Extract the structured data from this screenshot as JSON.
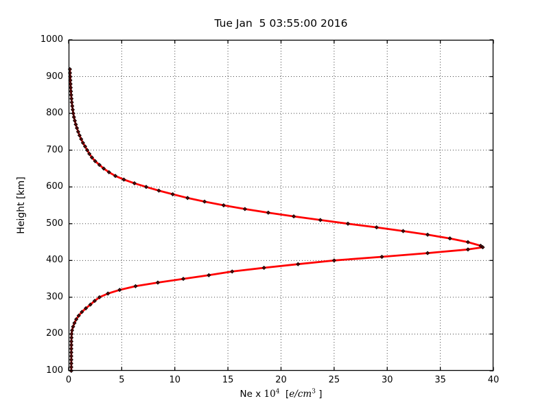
{
  "figure": {
    "background": "#ffffff"
  },
  "chart_data": {
    "type": "line",
    "title": "Tue Jan  5 03:55:00 2016",
    "ylabel": "Height [km]",
    "xlabel_parts": {
      "p1": "Ne x ",
      "num": "10",
      "sup1": "4",
      "p2": "  [",
      "italic": "e/cm",
      "sup2": "3",
      "p3": " ]"
    },
    "xlim": [
      0,
      40
    ],
    "ylim": [
      100,
      1000
    ],
    "x_ticks": [
      0,
      5,
      10,
      15,
      20,
      25,
      30,
      35,
      40
    ],
    "y_ticks": [
      100,
      200,
      300,
      400,
      500,
      600,
      700,
      800,
      900,
      1000
    ],
    "grid": "dotted-both-axes",
    "legend": "none",
    "line_color": "#ff0000",
    "marker": "diamond",
    "marker_color": "#5c0000",
    "series": [
      {
        "name": "electron-density-profile",
        "points_format": [
          "height_km",
          "ne_x10^4_e_per_cm3"
        ],
        "points": [
          [
            100,
            0.25
          ],
          [
            110,
            0.25
          ],
          [
            120,
            0.25
          ],
          [
            130,
            0.25
          ],
          [
            140,
            0.25
          ],
          [
            150,
            0.25
          ],
          [
            160,
            0.25
          ],
          [
            170,
            0.26
          ],
          [
            180,
            0.26
          ],
          [
            190,
            0.27
          ],
          [
            200,
            0.28
          ],
          [
            210,
            0.32
          ],
          [
            220,
            0.42
          ],
          [
            230,
            0.55
          ],
          [
            240,
            0.72
          ],
          [
            250,
            0.95
          ],
          [
            260,
            1.25
          ],
          [
            270,
            1.62
          ],
          [
            280,
            2.05
          ],
          [
            290,
            2.45
          ],
          [
            300,
            2.9
          ],
          [
            310,
            3.7
          ],
          [
            320,
            4.8
          ],
          [
            330,
            6.3
          ],
          [
            340,
            8.4
          ],
          [
            350,
            10.8
          ],
          [
            360,
            13.2
          ],
          [
            370,
            15.4
          ],
          [
            380,
            18.4
          ],
          [
            390,
            21.6
          ],
          [
            400,
            25.0
          ],
          [
            410,
            29.5
          ],
          [
            420,
            33.8
          ],
          [
            430,
            37.6
          ],
          [
            436,
            39.0
          ],
          [
            440,
            38.8
          ],
          [
            450,
            37.6
          ],
          [
            460,
            35.9
          ],
          [
            470,
            33.8
          ],
          [
            480,
            31.5
          ],
          [
            490,
            29.0
          ],
          [
            500,
            26.3
          ],
          [
            510,
            23.7
          ],
          [
            520,
            21.2
          ],
          [
            530,
            18.8
          ],
          [
            540,
            16.6
          ],
          [
            550,
            14.6
          ],
          [
            560,
            12.8
          ],
          [
            570,
            11.2
          ],
          [
            580,
            9.8
          ],
          [
            590,
            8.5
          ],
          [
            600,
            7.3
          ],
          [
            610,
            6.2
          ],
          [
            620,
            5.2
          ],
          [
            630,
            4.4
          ],
          [
            640,
            3.8
          ],
          [
            650,
            3.3
          ],
          [
            660,
            2.9
          ],
          [
            670,
            2.5
          ],
          [
            680,
            2.2
          ],
          [
            690,
            1.95
          ],
          [
            700,
            1.75
          ],
          [
            710,
            1.55
          ],
          [
            720,
            1.35
          ],
          [
            730,
            1.18
          ],
          [
            740,
            1.03
          ],
          [
            750,
            0.9
          ],
          [
            760,
            0.78
          ],
          [
            770,
            0.67
          ],
          [
            780,
            0.58
          ],
          [
            790,
            0.5
          ],
          [
            800,
            0.44
          ],
          [
            810,
            0.39
          ],
          [
            820,
            0.34
          ],
          [
            830,
            0.3
          ],
          [
            840,
            0.27
          ],
          [
            850,
            0.24
          ],
          [
            860,
            0.22
          ],
          [
            870,
            0.2
          ],
          [
            880,
            0.18
          ],
          [
            890,
            0.16
          ],
          [
            900,
            0.15
          ],
          [
            910,
            0.13
          ],
          [
            920,
            0.12
          ]
        ]
      }
    ]
  }
}
